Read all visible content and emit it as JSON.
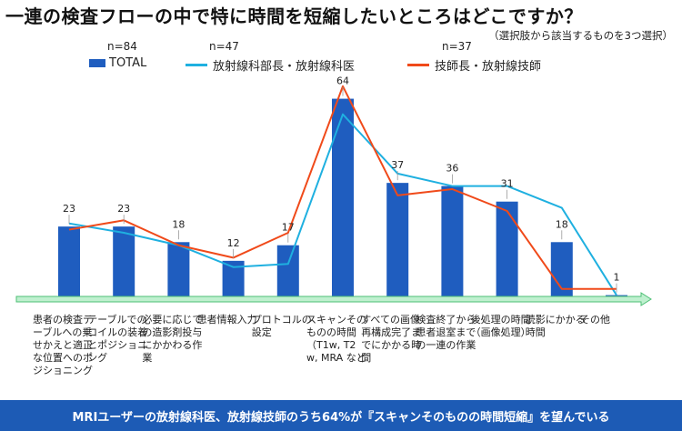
{
  "title": "一連の検査フローの中で特に時間を短縮したいところはどこですか？",
  "subtitle": "（選択肢から該当するものを3つ選択）",
  "chart_data": {
    "type": "bar",
    "categories": [
      "患者の検査テーブルへの乗せかえと適正な位置へのポジショニング",
      "テーブルでのコイルの装着とポジショニング",
      "必要に応じての造影剤投与にかかわる作業",
      "患者情報入力",
      "プロトコルの設定",
      "スキャンそのものの時間（T1w, T2w, MRA など",
      "すべての画像再構成完了までにかかる時間",
      "検査終了から患者退室までの一連の作業",
      "後処理の時間（画像処理）",
      "読影にかかる時間",
      "その他"
    ],
    "series": [
      {
        "name": "TOTAL",
        "n": "n=84",
        "type": "bar",
        "color": "#1f5dbf",
        "values": [
          23,
          23,
          18,
          12,
          17,
          64,
          37,
          36,
          31,
          18,
          1
        ]
      },
      {
        "name": "放射線科部長・放射線科医",
        "n": "n=47",
        "type": "line",
        "color": "#1fb0e0",
        "values": [
          24,
          21,
          17,
          10,
          11,
          59,
          40,
          36,
          36,
          29,
          1
        ]
      },
      {
        "name": "技師長・放射線技師",
        "n": "n=37",
        "type": "line",
        "color": "#f04a1a",
        "values": [
          22,
          25,
          17,
          13,
          21,
          68,
          33,
          35,
          28,
          3,
          3
        ]
      }
    ],
    "ylim": [
      0,
      70
    ],
    "legend": "top-left"
  },
  "footer": "MRIユーザーの放射線科医、放射線技師のうち64%が『スキャンそのものの時間短縮』を望んでいる"
}
